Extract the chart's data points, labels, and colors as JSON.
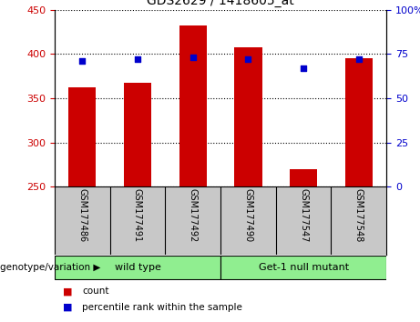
{
  "title": "GDS2629 / 1418605_at",
  "samples": [
    "GSM177486",
    "GSM177491",
    "GSM177492",
    "GSM177490",
    "GSM177547",
    "GSM177548"
  ],
  "counts": [
    362,
    367,
    432,
    408,
    270,
    395
  ],
  "percentile_ranks": [
    71,
    72,
    73,
    72,
    67,
    72
  ],
  "ylim_left": [
    250,
    450
  ],
  "ylim_right": [
    0,
    100
  ],
  "yticks_left": [
    250,
    300,
    350,
    400,
    450
  ],
  "yticks_right": [
    0,
    25,
    50,
    75,
    100
  ],
  "bar_color": "#cc0000",
  "dot_color": "#0000cc",
  "bar_bottom": 250,
  "group_label": "genotype/variation",
  "legend_count": "count",
  "legend_pct": "percentile rank within the sample",
  "bg_color": "#ffffff",
  "plot_bg_color": "#ffffff",
  "tick_label_color_left": "#cc0000",
  "tick_label_color_right": "#0000cc",
  "xlabel_area_color": "#c8c8c8",
  "group_box_color": "#90ee90",
  "group_defs": [
    [
      0,
      2,
      "wild type"
    ],
    [
      3,
      5,
      "Get-1 null mutant"
    ]
  ]
}
